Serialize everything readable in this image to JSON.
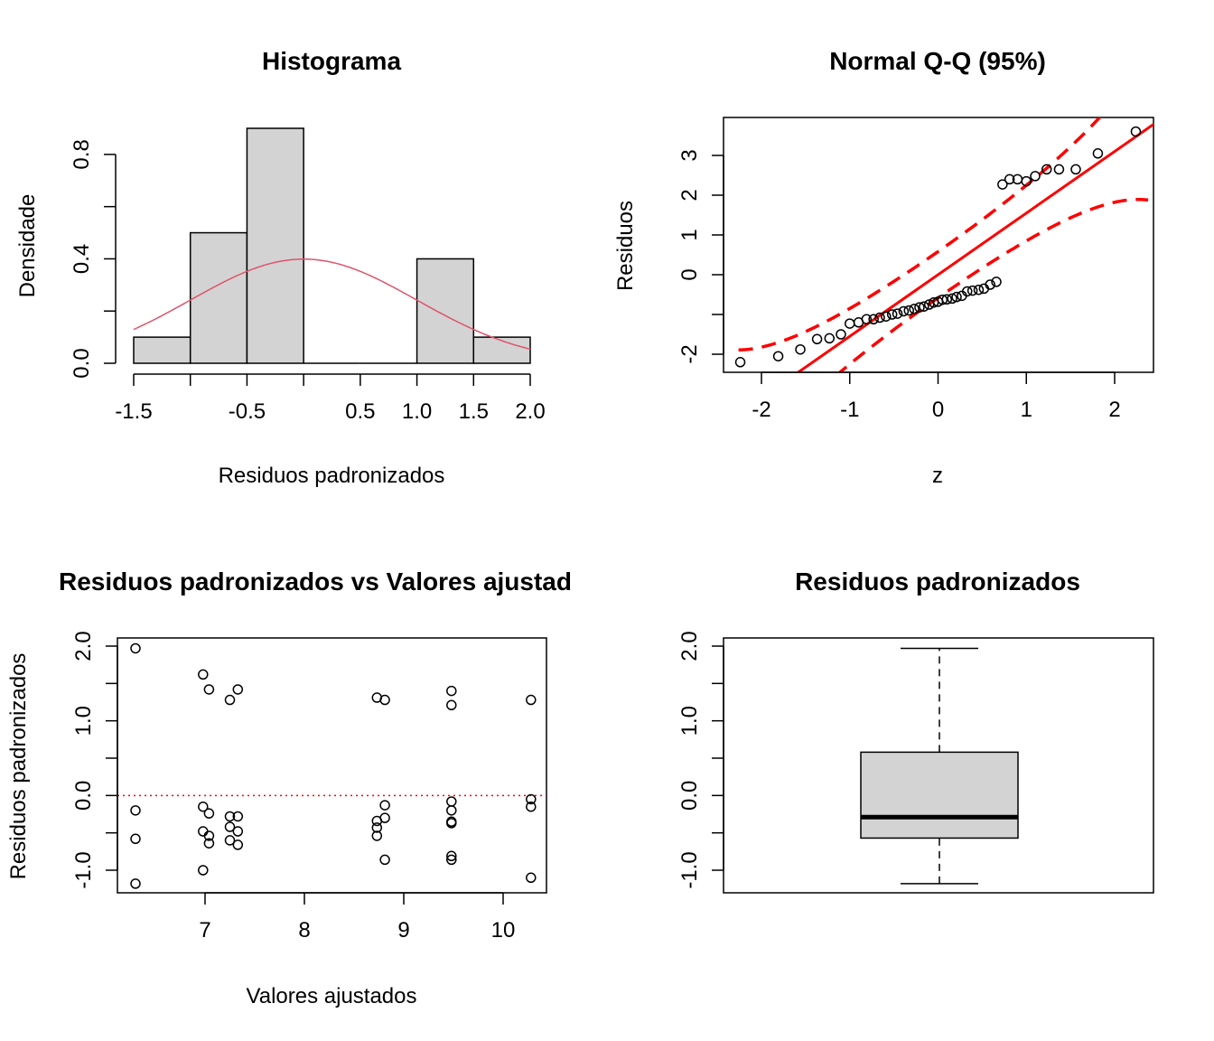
{
  "chart_data": [
    {
      "type": "bar",
      "title": "Histograma",
      "xlabel": "Residuos padronizados",
      "ylabel": "Densidade",
      "xlim": [
        -1.75,
        2.0
      ],
      "ylim": [
        0,
        0.95
      ],
      "bins": [
        {
          "from": -1.5,
          "to": -1.0,
          "density": 0.1
        },
        {
          "from": -1.0,
          "to": -0.5,
          "density": 0.5
        },
        {
          "from": -0.5,
          "to": 0.0,
          "density": 0.9
        },
        {
          "from": 0.0,
          "to": 0.5,
          "density": 0.0
        },
        {
          "from": 0.5,
          "to": 1.0,
          "density": 0.0
        },
        {
          "from": 1.0,
          "to": 1.5,
          "density": 0.4
        },
        {
          "from": 1.5,
          "to": 2.0,
          "density": 0.1
        }
      ],
      "xticks": [
        "-1.5",
        "-0.5",
        "0.5",
        "1.0",
        "1.5",
        "2.0"
      ],
      "xtick_values": [
        -1.5,
        -1.0,
        -0.5,
        0.0,
        0.5,
        1.0,
        1.5,
        2.0
      ],
      "xtick_labels": [
        "-1.5",
        "",
        "-0.5",
        "",
        "0.5",
        "1.0",
        "1.5",
        "2.0"
      ],
      "ytick_values": [
        0.0,
        0.2,
        0.4,
        0.6,
        0.8
      ],
      "ytick_labels": [
        "0.0",
        "",
        "0.4",
        "",
        "0.8"
      ],
      "yticks": [
        "0.0",
        "0.4",
        "0.8"
      ],
      "curve": {
        "type": "normal density",
        "mean": 0,
        "sd": 1,
        "color": "#DF536B"
      },
      "bar_color": "#D3D3D3"
    },
    {
      "type": "scatter",
      "title": "Normal Q-Q (95%)",
      "xlabel": "z",
      "ylabel": "Residuos",
      "xlim": [
        -2.45,
        2.45
      ],
      "ylim": [
        -2.4,
        3.9
      ],
      "xticks": [
        "-2",
        "-1",
        "0",
        "1",
        "2"
      ],
      "xtick_values": [
        -2,
        -1,
        0,
        1,
        2
      ],
      "ytick_values": [
        -2,
        -1,
        0,
        1,
        2,
        3
      ],
      "ytick_labels": [
        "-2",
        "",
        "0",
        "1",
        "2",
        "3"
      ],
      "yticks": [
        "-2",
        "0",
        "1",
        "2",
        "3"
      ],
      "points": [
        [
          -2.24,
          -2.2
        ],
        [
          -1.81,
          -2.05
        ],
        [
          -1.56,
          -1.88
        ],
        [
          -1.37,
          -1.62
        ],
        [
          -1.23,
          -1.6
        ],
        [
          -1.1,
          -1.5
        ],
        [
          -1.0,
          -1.23
        ],
        [
          -0.9,
          -1.2
        ],
        [
          -0.81,
          -1.12
        ],
        [
          -0.73,
          -1.12
        ],
        [
          -0.66,
          -1.08
        ],
        [
          -0.59,
          -1.05
        ],
        [
          -0.52,
          -1.0
        ],
        [
          -0.46,
          -0.98
        ],
        [
          -0.39,
          -0.92
        ],
        [
          -0.33,
          -0.9
        ],
        [
          -0.27,
          -0.86
        ],
        [
          -0.21,
          -0.82
        ],
        [
          -0.16,
          -0.8
        ],
        [
          -0.1,
          -0.75
        ],
        [
          -0.05,
          -0.7
        ],
        [
          0.0,
          -0.68
        ],
        [
          0.05,
          -0.63
        ],
        [
          0.1,
          -0.62
        ],
        [
          0.16,
          -0.6
        ],
        [
          0.21,
          -0.56
        ],
        [
          0.27,
          -0.53
        ],
        [
          0.33,
          -0.42
        ],
        [
          0.39,
          -0.4
        ],
        [
          0.46,
          -0.38
        ],
        [
          0.52,
          -0.35
        ],
        [
          0.59,
          -0.25
        ],
        [
          0.66,
          -0.18
        ],
        [
          0.73,
          2.27
        ],
        [
          0.81,
          2.4
        ],
        [
          0.9,
          2.4
        ],
        [
          1.0,
          2.35
        ],
        [
          1.1,
          2.48
        ],
        [
          1.23,
          2.65
        ],
        [
          1.37,
          2.65
        ],
        [
          1.56,
          2.65
        ],
        [
          1.81,
          3.05
        ],
        [
          2.24,
          3.6
        ]
      ],
      "reference_line": {
        "intercept": 0,
        "slope": 1.55,
        "color": "#FF0000"
      },
      "confidence_band": "95%"
    },
    {
      "type": "scatter",
      "title": "Residuos padronizados vs Valores ajustad",
      "xlabel": "Valores ajustados",
      "ylabel": "Residuos padronizados",
      "xlim": [
        6.25,
        10.45
      ],
      "ylim": [
        -1.3,
        2.1
      ],
      "xticks": [
        "7",
        "8",
        "9",
        "10"
      ],
      "xtick_values": [
        7,
        8,
        9,
        10
      ],
      "ytick_values": [
        -1.0,
        -0.5,
        0.0,
        0.5,
        1.0,
        1.5,
        2.0
      ],
      "ytick_labels": [
        "-1.0",
        "",
        "0.0",
        "",
        "1.0",
        "",
        "2.0"
      ],
      "yticks": [
        "-1.0",
        "0.0",
        "1.0",
        "2.0"
      ],
      "points": [
        [
          6.3,
          1.97
        ],
        [
          6.3,
          -0.2
        ],
        [
          6.3,
          -0.58
        ],
        [
          6.3,
          -1.18
        ],
        [
          6.98,
          1.62
        ],
        [
          7.04,
          1.42
        ],
        [
          6.98,
          -0.15
        ],
        [
          7.04,
          -0.24
        ],
        [
          6.98,
          -0.48
        ],
        [
          7.04,
          -0.54
        ],
        [
          7.04,
          -0.64
        ],
        [
          6.98,
          -1.0
        ],
        [
          7.25,
          1.28
        ],
        [
          7.33,
          1.42
        ],
        [
          7.25,
          -0.28
        ],
        [
          7.33,
          -0.28
        ],
        [
          7.25,
          -0.42
        ],
        [
          7.33,
          -0.48
        ],
        [
          7.25,
          -0.6
        ],
        [
          7.33,
          -0.66
        ],
        [
          8.73,
          1.31
        ],
        [
          8.81,
          1.28
        ],
        [
          8.81,
          -0.13
        ],
        [
          8.73,
          -0.34
        ],
        [
          8.81,
          -0.3
        ],
        [
          8.73,
          -0.43
        ],
        [
          8.73,
          -0.54
        ],
        [
          8.81,
          -0.86
        ],
        [
          9.48,
          1.4
        ],
        [
          9.48,
          1.21
        ],
        [
          9.48,
          -0.08
        ],
        [
          9.48,
          -0.2
        ],
        [
          9.48,
          -0.35
        ],
        [
          9.48,
          -0.37
        ],
        [
          9.48,
          -0.81
        ],
        [
          9.48,
          -0.86
        ],
        [
          10.28,
          1.28
        ],
        [
          10.28,
          -0.05
        ],
        [
          10.28,
          -0.15
        ],
        [
          10.28,
          -1.1
        ]
      ],
      "reference_line": {
        "y": 0,
        "color": "#FF0000",
        "style": "dotted"
      }
    },
    {
      "type": "box",
      "title": "Residuos padronizados",
      "ylim": [
        -1.3,
        2.1
      ],
      "ytick_values": [
        -1.0,
        -0.5,
        0.0,
        0.5,
        1.0,
        1.5,
        2.0
      ],
      "ytick_labels": [
        "-1.0",
        "",
        "0.0",
        "",
        "1.0",
        "",
        "2.0"
      ],
      "yticks": [
        "-1.0",
        "0.0",
        "1.0",
        "2.0"
      ],
      "min": -1.18,
      "q1": -0.57,
      "median": -0.29,
      "q3": 0.58,
      "max": 1.97,
      "fill": "#D3D3D3"
    }
  ]
}
